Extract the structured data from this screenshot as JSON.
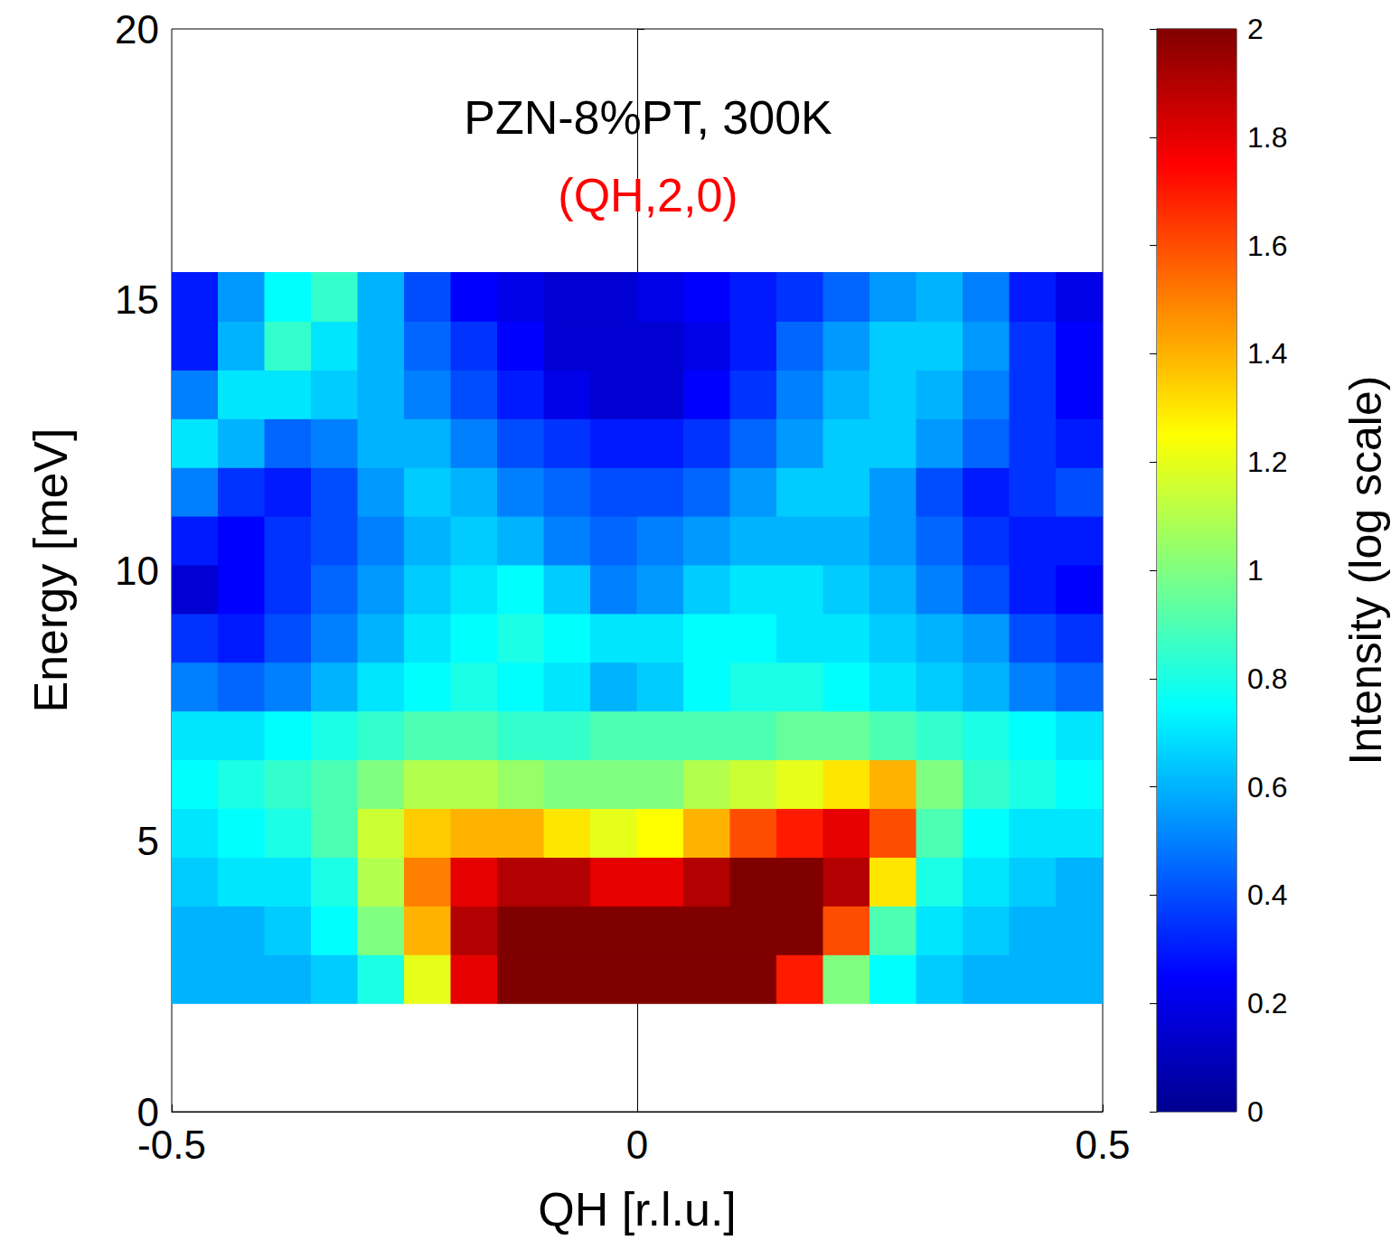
{
  "chart_data": {
    "type": "heatmap",
    "title": "PZN-8%PT, 300K",
    "subtitle": "(QH,2,0)",
    "x_label": "QH [r.l.u.]",
    "y_label": "Energy [meV]",
    "xlim": [
      -0.5,
      0.5
    ],
    "xticks": [
      -0.5,
      0,
      0.5
    ],
    "ylim": [
      0,
      20
    ],
    "yticks": [
      0,
      5,
      10,
      15,
      20
    ],
    "x": [
      -0.475,
      -0.425,
      -0.375,
      -0.325,
      -0.275,
      -0.225,
      -0.175,
      -0.125,
      -0.075,
      -0.025,
      0.025,
      0.075,
      0.125,
      0.175,
      0.225,
      0.275,
      0.325,
      0.375,
      0.425,
      0.475
    ],
    "y": [
      2.45,
      3.35,
      4.25,
      5.15,
      6.05,
      6.95,
      7.85,
      8.75,
      9.65,
      10.55,
      11.45,
      12.35,
      13.25,
      14.15,
      15.05
    ],
    "z": [
      [
        0.6,
        0.6,
        0.6,
        0.65,
        0.8,
        1.2,
        1.8,
        2.0,
        2.0,
        2.0,
        2.0,
        2.0,
        2.0,
        1.7,
        1.0,
        0.75,
        0.65,
        0.6,
        0.6,
        0.6
      ],
      [
        0.6,
        0.6,
        0.65,
        0.75,
        1.0,
        1.4,
        1.9,
        2.0,
        2.0,
        2.0,
        2.0,
        2.0,
        2.0,
        2.0,
        1.6,
        0.9,
        0.7,
        0.65,
        0.6,
        0.6
      ],
      [
        0.65,
        0.7,
        0.7,
        0.8,
        1.1,
        1.5,
        1.8,
        1.9,
        1.9,
        1.8,
        1.8,
        1.9,
        2.0,
        2.0,
        1.9,
        1.3,
        0.8,
        0.7,
        0.65,
        0.6
      ],
      [
        0.7,
        0.75,
        0.8,
        0.9,
        1.15,
        1.35,
        1.4,
        1.4,
        1.3,
        1.2,
        1.25,
        1.4,
        1.6,
        1.7,
        1.8,
        1.6,
        0.9,
        0.75,
        0.7,
        0.7
      ],
      [
        0.75,
        0.8,
        0.85,
        0.9,
        1.0,
        1.1,
        1.1,
        1.05,
        1.0,
        1.0,
        1.0,
        1.1,
        1.15,
        1.2,
        1.3,
        1.4,
        1.0,
        0.85,
        0.8,
        0.75
      ],
      [
        0.7,
        0.7,
        0.75,
        0.8,
        0.85,
        0.9,
        0.9,
        0.85,
        0.85,
        0.9,
        0.9,
        0.9,
        0.9,
        0.95,
        0.95,
        0.9,
        0.85,
        0.8,
        0.75,
        0.7
      ],
      [
        0.5,
        0.45,
        0.5,
        0.6,
        0.7,
        0.75,
        0.8,
        0.75,
        0.7,
        0.6,
        0.65,
        0.75,
        0.8,
        0.8,
        0.75,
        0.7,
        0.65,
        0.6,
        0.5,
        0.45
      ],
      [
        0.35,
        0.3,
        0.4,
        0.5,
        0.6,
        0.7,
        0.75,
        0.8,
        0.75,
        0.7,
        0.7,
        0.75,
        0.75,
        0.7,
        0.7,
        0.65,
        0.6,
        0.55,
        0.4,
        0.35
      ],
      [
        0.15,
        0.25,
        0.35,
        0.45,
        0.55,
        0.65,
        0.7,
        0.75,
        0.65,
        0.5,
        0.55,
        0.65,
        0.7,
        0.7,
        0.65,
        0.6,
        0.5,
        0.4,
        0.3,
        0.25
      ],
      [
        0.3,
        0.25,
        0.35,
        0.4,
        0.5,
        0.6,
        0.65,
        0.6,
        0.5,
        0.45,
        0.5,
        0.55,
        0.6,
        0.6,
        0.6,
        0.55,
        0.45,
        0.35,
        0.3,
        0.3
      ],
      [
        0.5,
        0.35,
        0.3,
        0.4,
        0.55,
        0.65,
        0.6,
        0.5,
        0.45,
        0.4,
        0.4,
        0.45,
        0.55,
        0.65,
        0.65,
        0.55,
        0.4,
        0.3,
        0.35,
        0.4
      ],
      [
        0.7,
        0.6,
        0.45,
        0.5,
        0.6,
        0.6,
        0.5,
        0.4,
        0.35,
        0.3,
        0.3,
        0.35,
        0.45,
        0.55,
        0.65,
        0.65,
        0.55,
        0.45,
        0.35,
        0.3
      ],
      [
        0.5,
        0.7,
        0.7,
        0.65,
        0.6,
        0.5,
        0.4,
        0.3,
        0.2,
        0.15,
        0.15,
        0.25,
        0.35,
        0.5,
        0.6,
        0.65,
        0.6,
        0.5,
        0.35,
        0.25
      ],
      [
        0.3,
        0.6,
        0.85,
        0.7,
        0.6,
        0.45,
        0.35,
        0.25,
        0.15,
        0.15,
        0.15,
        0.2,
        0.3,
        0.45,
        0.55,
        0.65,
        0.65,
        0.55,
        0.35,
        0.25
      ],
      [
        0.3,
        0.55,
        0.75,
        0.85,
        0.6,
        0.4,
        0.25,
        0.2,
        0.15,
        0.15,
        0.2,
        0.25,
        0.3,
        0.35,
        0.45,
        0.55,
        0.6,
        0.5,
        0.3,
        0.2
      ]
    ],
    "colorbar_label": "Intensity (log scale)",
    "zlim": [
      0,
      2
    ],
    "zticks": [
      0,
      0.2,
      0.4,
      0.6,
      0.8,
      1,
      1.2,
      1.4,
      1.6,
      1.8,
      2
    ]
  }
}
